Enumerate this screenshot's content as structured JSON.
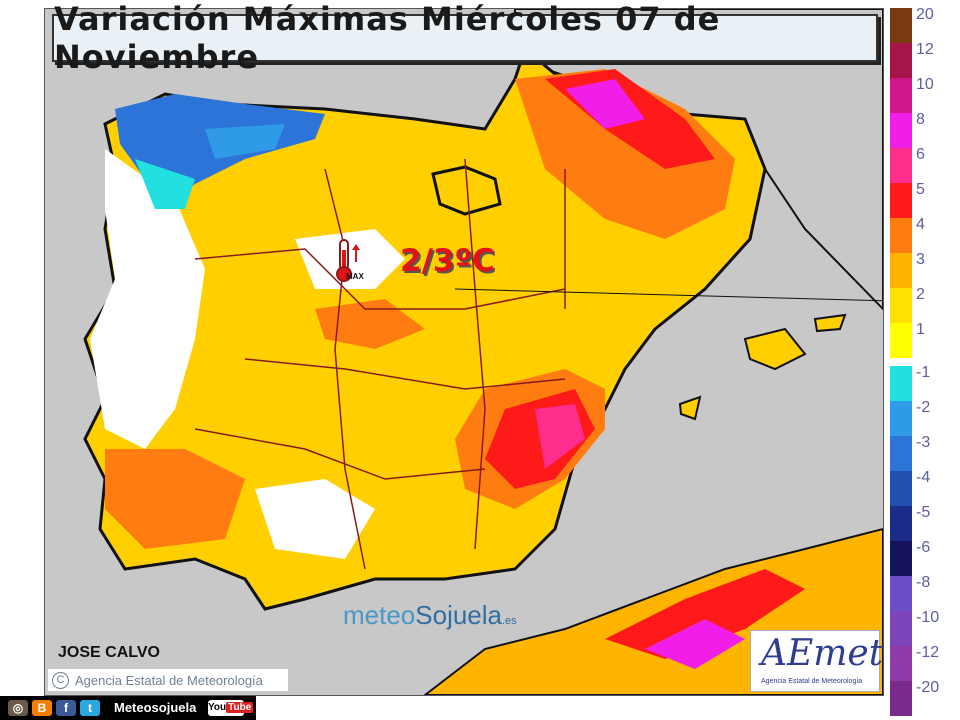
{
  "title": "Variación Máximas Miércoles 07 de Noviembre",
  "callout": {
    "value": "2/3ºC",
    "icon_label": "MAX"
  },
  "author": "JOSE CALVO",
  "copyright": {
    "symbol": "C",
    "text": "Agencia Estatal de Meteorología"
  },
  "watermark": {
    "part1": "meteo",
    "part2": "Sojuela",
    "suffix": ".es"
  },
  "aemet": {
    "logo": "AEmet",
    "subtitle": "Agencia Estatal de Meteorología"
  },
  "legend": {
    "positive": [
      {
        "label": "20",
        "color": "#7a3a10"
      },
      {
        "label": "12",
        "color": "#a5154a"
      },
      {
        "label": "10",
        "color": "#d1168c"
      },
      {
        "label": "8",
        "color": "#f01ee6"
      },
      {
        "label": "6",
        "color": "#ff2d8c"
      },
      {
        "label": "5",
        "color": "#ff1a1a"
      },
      {
        "label": "4",
        "color": "#ff7d10"
      },
      {
        "label": "3",
        "color": "#ffb400"
      },
      {
        "label": "2",
        "color": "#ffe000"
      },
      {
        "label": "1",
        "color": "#ffff00"
      }
    ],
    "negative": [
      {
        "label": "-1",
        "color": "#22e0e0"
      },
      {
        "label": "-2",
        "color": "#2f9ae8"
      },
      {
        "label": "-3",
        "color": "#2c74d8"
      },
      {
        "label": "-4",
        "color": "#2050b0"
      },
      {
        "label": "-5",
        "color": "#1b2d88"
      },
      {
        "label": "-6",
        "color": "#15125e"
      },
      {
        "label": "-8",
        "color": "#6a4fc8"
      },
      {
        "label": "-10",
        "color": "#7e44bb"
      },
      {
        "label": "-12",
        "color": "#8e3aa8"
      },
      {
        "label": "-20",
        "color": "#7a2a8a"
      }
    ]
  },
  "social": {
    "icons": [
      {
        "name": "instagram-icon",
        "glyph": "◎",
        "color": "#6b5a4a"
      },
      {
        "name": "blogger-icon",
        "glyph": "B",
        "color": "#f57d00"
      },
      {
        "name": "facebook-icon",
        "glyph": "f",
        "color": "#3b5998"
      },
      {
        "name": "twitter-icon",
        "glyph": "t",
        "color": "#2aa9e0"
      }
    ],
    "name": "Meteosojuela",
    "youtube": "You",
    "youtube_tube": "Tube"
  }
}
